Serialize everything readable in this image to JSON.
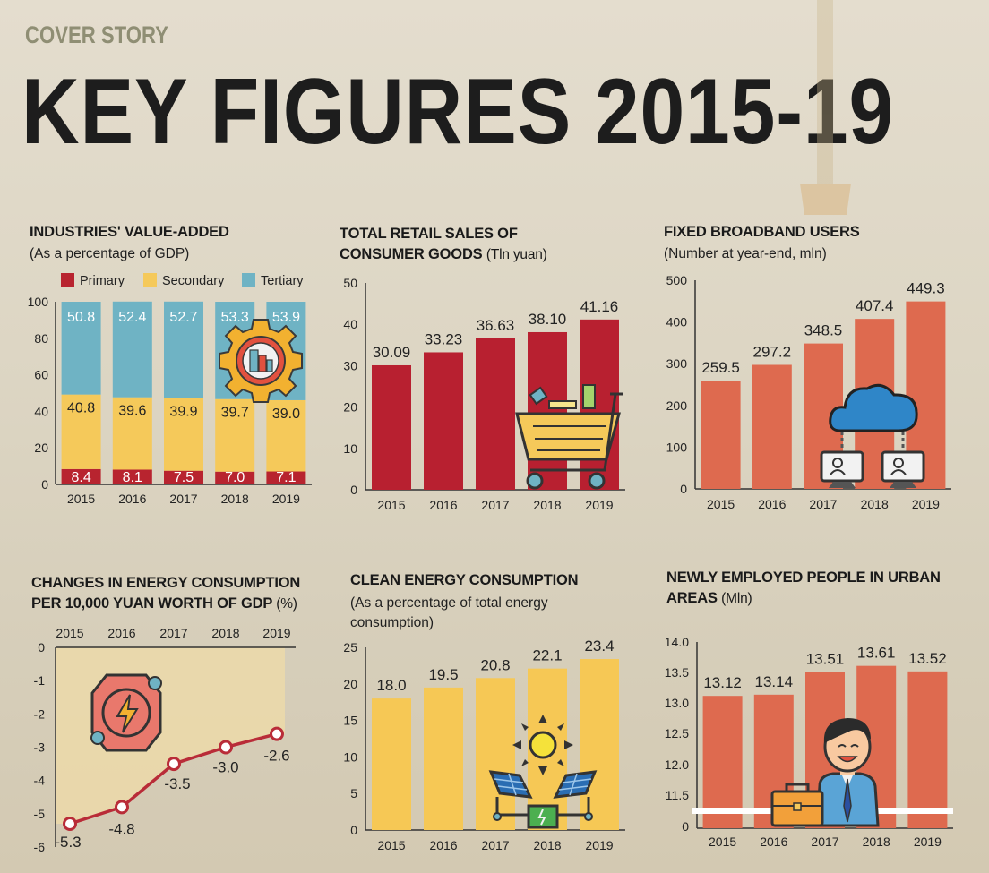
{
  "header": {
    "kicker": "COVER STORY",
    "title": "KEY FIGURES 2015-19"
  },
  "colors": {
    "primary": "#b8242f",
    "secondary": "#f5c95a",
    "tertiary": "#6fb3c4",
    "retail": "#b82030",
    "broadband": "#de6a4f",
    "clean": "#f6c855",
    "employed": "#de6a4f",
    "energy_line": "#b92c38",
    "energy_fill": "#ecd9a9"
  },
  "chart_data": [
    {
      "id": "industries",
      "type": "bar",
      "stacked": true,
      "title": "INDUSTRIES' VALUE-ADDED",
      "subtitle": "(As a percentage of GDP)",
      "categories": [
        "2015",
        "2016",
        "2017",
        "2018",
        "2019"
      ],
      "ylim": [
        0,
        100
      ],
      "yticks": [
        "0",
        "20",
        "40",
        "60",
        "80",
        "100"
      ],
      "series": [
        {
          "name": "Primary",
          "values": [
            8.4,
            8.1,
            7.5,
            7.0,
            7.1
          ],
          "labels": [
            "8.4",
            "8.1",
            "7.5",
            "7.0",
            "7.1"
          ]
        },
        {
          "name": "Secondary",
          "values": [
            40.8,
            39.6,
            39.9,
            39.7,
            39.0
          ],
          "labels": [
            "40.8",
            "39.6",
            "39.9",
            "39.7",
            "39.0"
          ]
        },
        {
          "name": "Tertiary",
          "values": [
            50.8,
            52.4,
            52.7,
            53.3,
            53.9
          ],
          "labels": [
            "50.8",
            "52.4",
            "52.7",
            "53.3",
            "53.9"
          ]
        }
      ],
      "legend": "top",
      "icon": "industry-gear-icon"
    },
    {
      "id": "retail",
      "type": "bar",
      "title": "TOTAL RETAIL SALES OF",
      "title2": "CONSUMER GOODS",
      "unit": "(Tln yuan)",
      "categories": [
        "2015",
        "2016",
        "2017",
        "2018",
        "2019"
      ],
      "values": [
        30.09,
        33.23,
        36.63,
        38.1,
        41.16
      ],
      "labels": [
        "30.09",
        "33.23",
        "36.63",
        "38.10",
        "41.16"
      ],
      "ylim": [
        0,
        50
      ],
      "yticks": [
        "0",
        "10",
        "20",
        "30",
        "40",
        "50"
      ],
      "icon": "shopping-cart-icon"
    },
    {
      "id": "broadband",
      "type": "bar",
      "title": "FIXED BROADBAND USERS",
      "subtitle": "(Number at year-end, mln)",
      "categories": [
        "2015",
        "2016",
        "2017",
        "2018",
        "2019"
      ],
      "values": [
        259.5,
        297.2,
        348.5,
        407.4,
        449.3
      ],
      "labels": [
        "259.5",
        "297.2",
        "348.5",
        "407.4",
        "449.3"
      ],
      "ylim": [
        0,
        500
      ],
      "yticks": [
        "0",
        "100",
        "200",
        "300",
        "400",
        "500"
      ],
      "icon": "cloud-network-icon"
    },
    {
      "id": "energy",
      "type": "line",
      "title": "CHANGES IN ENERGY CONSUMPTION",
      "title2": "PER 10,000 YUAN WORTH OF GDP",
      "unit": "(%)",
      "categories": [
        "2015",
        "2016",
        "2017",
        "2018",
        "2019"
      ],
      "values": [
        -5.3,
        -4.8,
        -3.5,
        -3.0,
        -2.6
      ],
      "labels": [
        "-5.3",
        "-4.8",
        "-3.5",
        "-3.0",
        "-2.6"
      ],
      "ylim": [
        -6,
        0
      ],
      "yticks": [
        "-6",
        "-5",
        "-4",
        "-3",
        "-2",
        "-1",
        "0"
      ],
      "x_axis_position": "top",
      "icon": "energy-bolt-icon"
    },
    {
      "id": "clean",
      "type": "bar",
      "title": "CLEAN ENERGY CONSUMPTION",
      "subtitle": "(As a percentage of total energy",
      "subtitle2": "consumption)",
      "categories": [
        "2015",
        "2016",
        "2017",
        "2018",
        "2019"
      ],
      "values": [
        18.0,
        19.5,
        20.8,
        22.1,
        23.4
      ],
      "labels": [
        "18.0",
        "19.5",
        "20.8",
        "22.1",
        "23.4"
      ],
      "ylim": [
        0,
        25
      ],
      "yticks": [
        "0",
        "5",
        "10",
        "15",
        "20",
        "25"
      ],
      "icon": "solar-power-icon"
    },
    {
      "id": "employed",
      "type": "bar",
      "title": "NEWLY EMPLOYED PEOPLE IN URBAN",
      "title2": "AREAS",
      "unit": "(Mln)",
      "categories": [
        "2015",
        "2016",
        "2017",
        "2018",
        "2019"
      ],
      "values": [
        13.12,
        13.14,
        13.51,
        13.61,
        13.52
      ],
      "labels": [
        "13.12",
        "13.14",
        "13.51",
        "13.61",
        "13.52"
      ],
      "ylim": [
        11.0,
        14.0
      ],
      "yticks": [
        "0",
        "11.5",
        "12.0",
        "12.5",
        "13.0",
        "13.5",
        "14.0"
      ],
      "axis_break": true,
      "icon": "office-worker-icon"
    }
  ]
}
